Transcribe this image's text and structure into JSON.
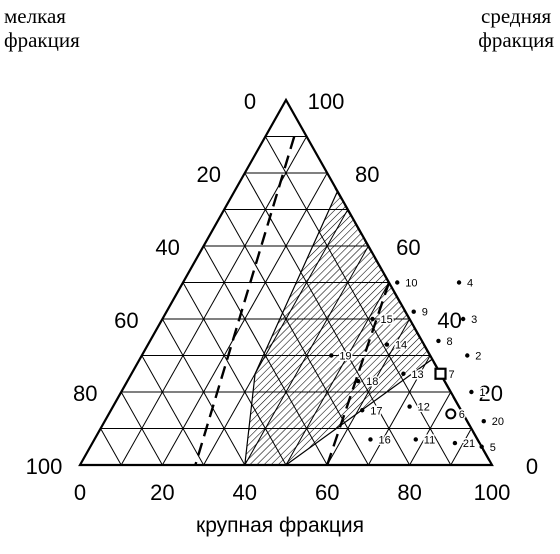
{
  "labels": {
    "fine_fraction": [
      "мелкая",
      "фракция"
    ],
    "medium_fraction": [
      "средняя",
      "фракция"
    ],
    "coarse_fraction": "крупная фракция"
  },
  "ticks": {
    "bottom": [
      "0",
      "20",
      "40",
      "60",
      "80",
      "100"
    ],
    "left": [
      "0",
      "20",
      "40",
      "60",
      "80",
      "100"
    ],
    "right": [
      "100",
      "80",
      "60",
      "40",
      "20",
      "0"
    ]
  },
  "points": [
    {
      "id": "1",
      "coarse": 85,
      "fine": 20,
      "marker": "dot"
    },
    {
      "id": "2",
      "coarse": 79,
      "fine": 30,
      "marker": "dot"
    },
    {
      "id": "3",
      "coarse": 73,
      "fine": 40,
      "marker": "dot"
    },
    {
      "id": "4",
      "coarse": 67,
      "fine": 50,
      "marker": "dot"
    },
    {
      "id": "5",
      "coarse": 95,
      "fine": 5,
      "marker": "dot"
    },
    {
      "id": "6",
      "coarse": 83,
      "fine": 14,
      "marker": "circle"
    },
    {
      "id": "7",
      "coarse": 75,
      "fine": 25,
      "marker": "square"
    },
    {
      "id": "8",
      "coarse": 70,
      "fine": 34,
      "marker": "dot"
    },
    {
      "id": "9",
      "coarse": 60,
      "fine": 42,
      "marker": "dot"
    },
    {
      "id": "10",
      "coarse": 52,
      "fine": 50,
      "marker": "dot"
    },
    {
      "id": "11",
      "coarse": 78,
      "fine": 7,
      "marker": "dot"
    },
    {
      "id": "12",
      "coarse": 72,
      "fine": 16,
      "marker": "dot"
    },
    {
      "id": "13",
      "coarse": 66,
      "fine": 25,
      "marker": "dot"
    },
    {
      "id": "14",
      "coarse": 58,
      "fine": 33,
      "marker": "dot"
    },
    {
      "id": "15",
      "coarse": 51,
      "fine": 40,
      "marker": "dot"
    },
    {
      "id": "16",
      "coarse": 67,
      "fine": 7,
      "marker": "dot"
    },
    {
      "id": "17",
      "coarse": 61,
      "fine": 15,
      "marker": "dot"
    },
    {
      "id": "18",
      "coarse": 56,
      "fine": 23,
      "marker": "dot"
    },
    {
      "id": "19",
      "coarse": 46,
      "fine": 30,
      "marker": "dot"
    },
    {
      "id": "20",
      "coarse": 92,
      "fine": 12,
      "marker": "dot"
    },
    {
      "id": "21",
      "coarse": 88,
      "fine": 6,
      "marker": "dot"
    }
  ],
  "region": {
    "fill": "hatched",
    "vertices": [
      {
        "coarse": 25,
        "fine": 75
      },
      {
        "coarse": 30,
        "fine": 25
      },
      {
        "coarse": 40,
        "fine": 0
      },
      {
        "coarse": 50,
        "fine": 0
      },
      {
        "coarse": 71,
        "fine": 29
      },
      {
        "coarse": 32,
        "fine": 68
      }
    ]
  },
  "dashed_lines": [
    [
      {
        "coarse": 7,
        "fine": 90
      },
      {
        "coarse": 28,
        "fine": 0
      }
    ],
    [
      {
        "coarse": 24,
        "fine": 76
      },
      {
        "coarse": 100,
        "fine": 0
      }
    ],
    [
      {
        "coarse": 50,
        "fine": 50
      },
      {
        "coarse": 60,
        "fine": 0
      }
    ]
  ],
  "colors": {
    "ink": "#000000",
    "background": "#ffffff"
  }
}
